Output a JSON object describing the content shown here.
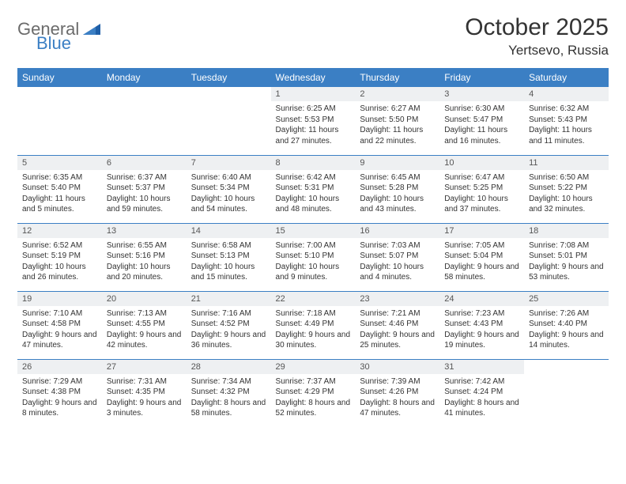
{
  "logo": {
    "part1": "General",
    "part2": "Blue"
  },
  "title": "October 2025",
  "location": "Yertsevo, Russia",
  "styling": {
    "header_bg": "#3b7fc4",
    "header_text": "#ffffff",
    "daynum_bg": "#eef0f2",
    "daynum_text": "#555555",
    "body_text": "#333333",
    "row_border": "#3b7fc4",
    "page_bg": "#ffffff",
    "month_fontsize": 30,
    "location_fontsize": 17,
    "dayheader_fontsize": 12,
    "daynum_fontsize": 11,
    "daydata_fontsize": 10
  },
  "day_headers": [
    "Sunday",
    "Monday",
    "Tuesday",
    "Wednesday",
    "Thursday",
    "Friday",
    "Saturday"
  ],
  "weeks": [
    [
      {
        "n": "",
        "sr": "",
        "ss": "",
        "dl": ""
      },
      {
        "n": "",
        "sr": "",
        "ss": "",
        "dl": ""
      },
      {
        "n": "",
        "sr": "",
        "ss": "",
        "dl": ""
      },
      {
        "n": "1",
        "sr": "Sunrise: 6:25 AM",
        "ss": "Sunset: 5:53 PM",
        "dl": "Daylight: 11 hours and 27 minutes."
      },
      {
        "n": "2",
        "sr": "Sunrise: 6:27 AM",
        "ss": "Sunset: 5:50 PM",
        "dl": "Daylight: 11 hours and 22 minutes."
      },
      {
        "n": "3",
        "sr": "Sunrise: 6:30 AM",
        "ss": "Sunset: 5:47 PM",
        "dl": "Daylight: 11 hours and 16 minutes."
      },
      {
        "n": "4",
        "sr": "Sunrise: 6:32 AM",
        "ss": "Sunset: 5:43 PM",
        "dl": "Daylight: 11 hours and 11 minutes."
      }
    ],
    [
      {
        "n": "5",
        "sr": "Sunrise: 6:35 AM",
        "ss": "Sunset: 5:40 PM",
        "dl": "Daylight: 11 hours and 5 minutes."
      },
      {
        "n": "6",
        "sr": "Sunrise: 6:37 AM",
        "ss": "Sunset: 5:37 PM",
        "dl": "Daylight: 10 hours and 59 minutes."
      },
      {
        "n": "7",
        "sr": "Sunrise: 6:40 AM",
        "ss": "Sunset: 5:34 PM",
        "dl": "Daylight: 10 hours and 54 minutes."
      },
      {
        "n": "8",
        "sr": "Sunrise: 6:42 AM",
        "ss": "Sunset: 5:31 PM",
        "dl": "Daylight: 10 hours and 48 minutes."
      },
      {
        "n": "9",
        "sr": "Sunrise: 6:45 AM",
        "ss": "Sunset: 5:28 PM",
        "dl": "Daylight: 10 hours and 43 minutes."
      },
      {
        "n": "10",
        "sr": "Sunrise: 6:47 AM",
        "ss": "Sunset: 5:25 PM",
        "dl": "Daylight: 10 hours and 37 minutes."
      },
      {
        "n": "11",
        "sr": "Sunrise: 6:50 AM",
        "ss": "Sunset: 5:22 PM",
        "dl": "Daylight: 10 hours and 32 minutes."
      }
    ],
    [
      {
        "n": "12",
        "sr": "Sunrise: 6:52 AM",
        "ss": "Sunset: 5:19 PM",
        "dl": "Daylight: 10 hours and 26 minutes."
      },
      {
        "n": "13",
        "sr": "Sunrise: 6:55 AM",
        "ss": "Sunset: 5:16 PM",
        "dl": "Daylight: 10 hours and 20 minutes."
      },
      {
        "n": "14",
        "sr": "Sunrise: 6:58 AM",
        "ss": "Sunset: 5:13 PM",
        "dl": "Daylight: 10 hours and 15 minutes."
      },
      {
        "n": "15",
        "sr": "Sunrise: 7:00 AM",
        "ss": "Sunset: 5:10 PM",
        "dl": "Daylight: 10 hours and 9 minutes."
      },
      {
        "n": "16",
        "sr": "Sunrise: 7:03 AM",
        "ss": "Sunset: 5:07 PM",
        "dl": "Daylight: 10 hours and 4 minutes."
      },
      {
        "n": "17",
        "sr": "Sunrise: 7:05 AM",
        "ss": "Sunset: 5:04 PM",
        "dl": "Daylight: 9 hours and 58 minutes."
      },
      {
        "n": "18",
        "sr": "Sunrise: 7:08 AM",
        "ss": "Sunset: 5:01 PM",
        "dl": "Daylight: 9 hours and 53 minutes."
      }
    ],
    [
      {
        "n": "19",
        "sr": "Sunrise: 7:10 AM",
        "ss": "Sunset: 4:58 PM",
        "dl": "Daylight: 9 hours and 47 minutes."
      },
      {
        "n": "20",
        "sr": "Sunrise: 7:13 AM",
        "ss": "Sunset: 4:55 PM",
        "dl": "Daylight: 9 hours and 42 minutes."
      },
      {
        "n": "21",
        "sr": "Sunrise: 7:16 AM",
        "ss": "Sunset: 4:52 PM",
        "dl": "Daylight: 9 hours and 36 minutes."
      },
      {
        "n": "22",
        "sr": "Sunrise: 7:18 AM",
        "ss": "Sunset: 4:49 PM",
        "dl": "Daylight: 9 hours and 30 minutes."
      },
      {
        "n": "23",
        "sr": "Sunrise: 7:21 AM",
        "ss": "Sunset: 4:46 PM",
        "dl": "Daylight: 9 hours and 25 minutes."
      },
      {
        "n": "24",
        "sr": "Sunrise: 7:23 AM",
        "ss": "Sunset: 4:43 PM",
        "dl": "Daylight: 9 hours and 19 minutes."
      },
      {
        "n": "25",
        "sr": "Sunrise: 7:26 AM",
        "ss": "Sunset: 4:40 PM",
        "dl": "Daylight: 9 hours and 14 minutes."
      }
    ],
    [
      {
        "n": "26",
        "sr": "Sunrise: 7:29 AM",
        "ss": "Sunset: 4:38 PM",
        "dl": "Daylight: 9 hours and 8 minutes."
      },
      {
        "n": "27",
        "sr": "Sunrise: 7:31 AM",
        "ss": "Sunset: 4:35 PM",
        "dl": "Daylight: 9 hours and 3 minutes."
      },
      {
        "n": "28",
        "sr": "Sunrise: 7:34 AM",
        "ss": "Sunset: 4:32 PM",
        "dl": "Daylight: 8 hours and 58 minutes."
      },
      {
        "n": "29",
        "sr": "Sunrise: 7:37 AM",
        "ss": "Sunset: 4:29 PM",
        "dl": "Daylight: 8 hours and 52 minutes."
      },
      {
        "n": "30",
        "sr": "Sunrise: 7:39 AM",
        "ss": "Sunset: 4:26 PM",
        "dl": "Daylight: 8 hours and 47 minutes."
      },
      {
        "n": "31",
        "sr": "Sunrise: 7:42 AM",
        "ss": "Sunset: 4:24 PM",
        "dl": "Daylight: 8 hours and 41 minutes."
      },
      {
        "n": "",
        "sr": "",
        "ss": "",
        "dl": ""
      }
    ]
  ]
}
